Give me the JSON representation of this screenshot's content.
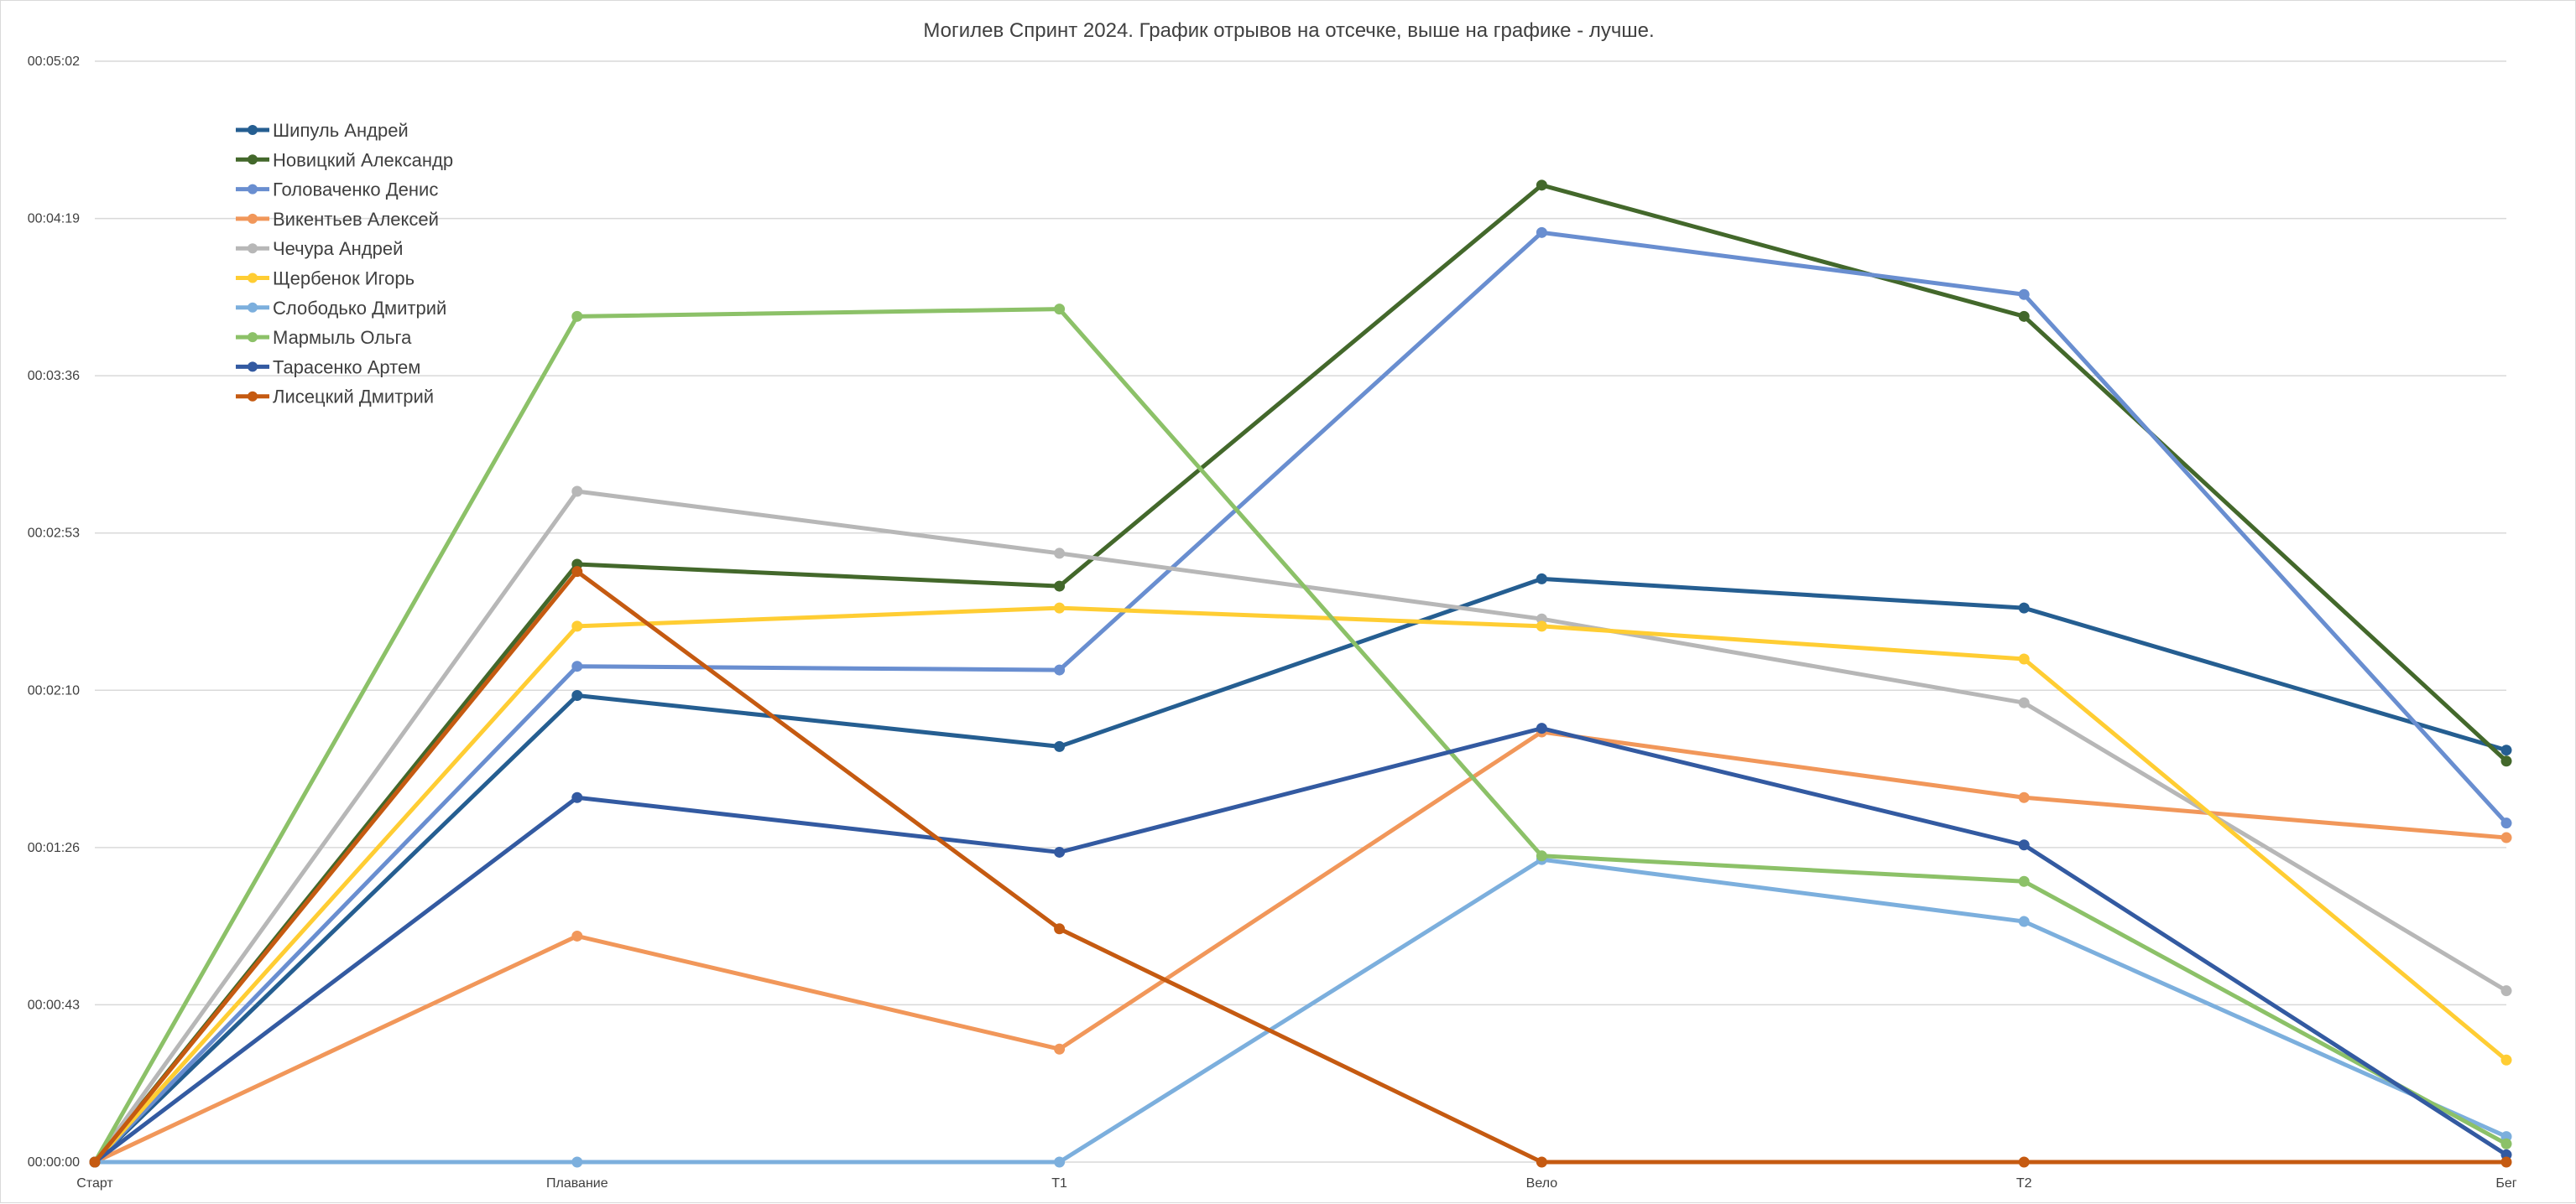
{
  "chart_data": {
    "type": "line",
    "title": "Могилев Спринт 2024. График отрывов на отсечке, выше на графике - лучше.",
    "xlabel": "",
    "ylabel": "",
    "categories": [
      "Старт",
      "Плавание",
      "Т1",
      "Вело",
      "Т2",
      "Бег"
    ],
    "y_unit": "seconds",
    "y_range_seconds": [
      0,
      302
    ],
    "y_ticks": [
      "00:00:00",
      "00:00:43",
      "00:01:26",
      "00:02:10",
      "00:02:53",
      "00:03:36",
      "00:04:19",
      "00:05:02"
    ],
    "grid": true,
    "legend_position": "top-left",
    "series": [
      {
        "name": "Шипуль Андрей",
        "color": "#255e91",
        "values": [
          0,
          128,
          114,
          160,
          152,
          113
        ]
      },
      {
        "name": "Новицкий Александр",
        "color": "#43682b",
        "values": [
          0,
          164,
          158,
          268,
          232,
          110
        ]
      },
      {
        "name": "Головаченко Денис",
        "color": "#698ed0",
        "values": [
          0,
          136,
          135,
          255,
          238,
          93
        ]
      },
      {
        "name": "Викентьев Алексей",
        "color": "#f1975a",
        "values": [
          0,
          62,
          31,
          118,
          100,
          89
        ]
      },
      {
        "name": "Чечура Андрей",
        "color": "#b7b7b7",
        "values": [
          0,
          184,
          167,
          149,
          126,
          47
        ]
      },
      {
        "name": "Щербенок Игорь",
        "color": "#ffcd33",
        "values": [
          0,
          147,
          152,
          147,
          138,
          28
        ]
      },
      {
        "name": "Слободько Дмитрий",
        "color": "#7cafdd",
        "values": [
          0,
          0,
          0,
          83,
          66,
          7
        ]
      },
      {
        "name": "Мармыль Ольга",
        "color": "#8cc168",
        "values": [
          0,
          232,
          234,
          84,
          77,
          5
        ]
      },
      {
        "name": "Тарасенко Артем",
        "color": "#335aa1",
        "values": [
          0,
          100,
          85,
          119,
          87,
          2
        ]
      },
      {
        "name": "Лисецкий Дмитрий",
        "color": "#c55a11",
        "values": [
          0,
          162,
          64,
          0,
          0,
          0
        ]
      }
    ]
  }
}
